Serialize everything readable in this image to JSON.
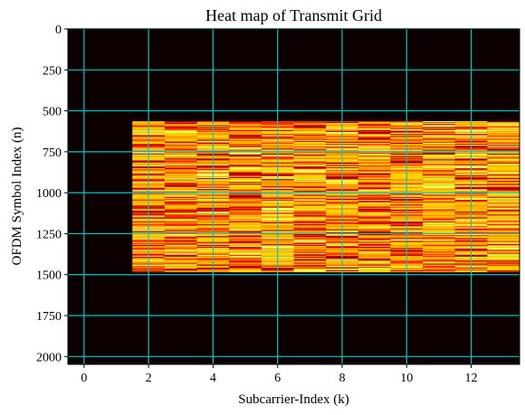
{
  "chart_data": {
    "type": "heatmap",
    "title": "Heat map of Transmit Grid",
    "xlabel": "Subcarrier-Index (k)",
    "ylabel": "OFDM Symbol Index (n)",
    "xlim": [
      -0.5,
      13.5
    ],
    "ylim": [
      2048,
      0
    ],
    "y_inverted": true,
    "x_ticks": [
      0,
      2,
      4,
      6,
      8,
      10,
      12
    ],
    "y_ticks": [
      0,
      250,
      500,
      750,
      1000,
      1250,
      1500,
      1750,
      2000
    ],
    "grid": true,
    "grid_color": "#00c8c8",
    "background_color": "#0d0000",
    "colormap": "hot",
    "colormap_stops": [
      "#0d0000",
      "#b30000",
      "#ff2a00",
      "#ff9900",
      "#ffd200",
      "#ffff55",
      "#b4ff78"
    ],
    "active_region": {
      "subcarriers": [
        2,
        13
      ],
      "symbols": [
        563,
        1484
      ]
    }
  }
}
